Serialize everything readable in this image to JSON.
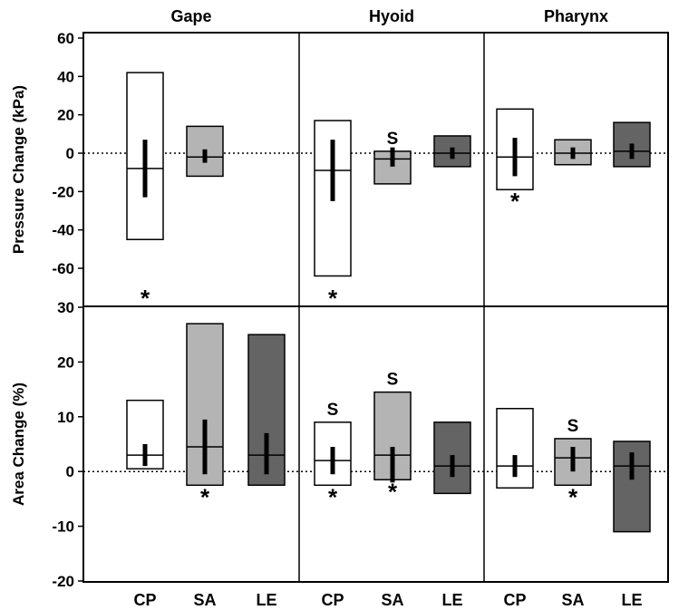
{
  "chart_data": {
    "type": "box",
    "panels": [
      "Gape",
      "Hyoid",
      "Pharynx"
    ],
    "categories": [
      "CP",
      "SA",
      "LE"
    ],
    "category_colors": {
      "CP": "#ffffff",
      "SA": "#b4b4b4",
      "LE": "#646464"
    },
    "rows": [
      {
        "ylabel": "Pressure Change (kPa)",
        "ylim": [
          -70,
          60
        ],
        "yticks": [
          60,
          40,
          20,
          0,
          -20,
          -40,
          -60
        ],
        "ytick_labels": [
          "60",
          "40",
          "20",
          "0",
          "-20",
          "-40",
          "-60"
        ],
        "groups": [
          [
            {
              "category": "CP",
              "min": -45,
              "max": 42,
              "center": -8,
              "bar_lo": -23,
              "bar_hi": 7,
              "star": true,
              "star_pos": "bottom"
            },
            {
              "category": "SA",
              "min": -12,
              "max": 14,
              "center": -2,
              "bar_lo": -5,
              "bar_hi": 2,
              "star": false
            },
            null
          ],
          [
            {
              "category": "CP",
              "min": -64,
              "max": 17,
              "center": -9,
              "bar_lo": -25,
              "bar_hi": 7,
              "star": true,
              "star_pos": "bottom"
            },
            {
              "category": "SA",
              "min": -16,
              "max": 1,
              "center": -3,
              "bar_lo": -7,
              "bar_hi": 3,
              "star": false,
              "label_s": "S"
            },
            {
              "category": "LE",
              "min": -7,
              "max": 9,
              "center": 0,
              "bar_lo": -3,
              "bar_hi": 3,
              "star": false
            }
          ],
          [
            {
              "category": "CP",
              "min": -19,
              "max": 23,
              "center": -2,
              "bar_lo": -12,
              "bar_hi": 8,
              "star": true,
              "star_pos": "below"
            },
            {
              "category": "SA",
              "min": -6,
              "max": 7,
              "center": 0,
              "bar_lo": -3,
              "bar_hi": 3,
              "star": false
            },
            {
              "category": "LE",
              "min": -7,
              "max": 16,
              "center": 1,
              "bar_lo": -3,
              "bar_hi": 5,
              "star": false
            }
          ]
        ]
      },
      {
        "ylabel": "Area Change  (%)",
        "ylim": [
          -20,
          30
        ],
        "yticks": [
          30,
          20,
          10,
          0,
          -10,
          -20
        ],
        "ytick_labels": [
          "30",
          "20",
          "10",
          "0",
          "-10",
          "-20"
        ],
        "groups": [
          [
            {
              "category": "CP",
              "min": 0.5,
              "max": 13,
              "center": 3,
              "bar_lo": 1,
              "bar_hi": 5,
              "star": false
            },
            {
              "category": "SA",
              "min": -2.5,
              "max": 27,
              "center": 4.5,
              "bar_lo": -0.5,
              "bar_hi": 9.5,
              "star": true,
              "star_pos": "below"
            },
            {
              "category": "LE",
              "min": -2.5,
              "max": 25,
              "center": 3,
              "bar_lo": -0.5,
              "bar_hi": 7,
              "star": false
            }
          ],
          [
            {
              "category": "CP",
              "min": -2.5,
              "max": 9,
              "center": 2,
              "bar_lo": -0.5,
              "bar_hi": 4.5,
              "star": true,
              "star_pos": "below",
              "label_s": "S"
            },
            {
              "category": "SA",
              "min": -1.5,
              "max": 14.5,
              "center": 3,
              "bar_lo": -2,
              "bar_hi": 4.5,
              "star": true,
              "star_pos": "below",
              "label_s": "S"
            },
            {
              "category": "LE",
              "min": -4,
              "max": 9,
              "center": 1,
              "bar_lo": -1,
              "bar_hi": 3,
              "star": false
            }
          ],
          [
            {
              "category": "CP",
              "min": -3,
              "max": 11.5,
              "center": 1,
              "bar_lo": -1,
              "bar_hi": 3,
              "star": false
            },
            {
              "category": "SA",
              "min": -2.5,
              "max": 6,
              "center": 2.5,
              "bar_lo": 0,
              "bar_hi": 4.5,
              "star": true,
              "star_pos": "below",
              "label_s": "S"
            },
            {
              "category": "LE",
              "min": -11,
              "max": 5.5,
              "center": 1,
              "bar_lo": -1.5,
              "bar_hi": 3.5,
              "star": false
            }
          ]
        ]
      }
    ],
    "grid": false,
    "reference_line": {
      "value": 0,
      "style": "dotted"
    },
    "legend": "none",
    "star_symbol": "*"
  }
}
